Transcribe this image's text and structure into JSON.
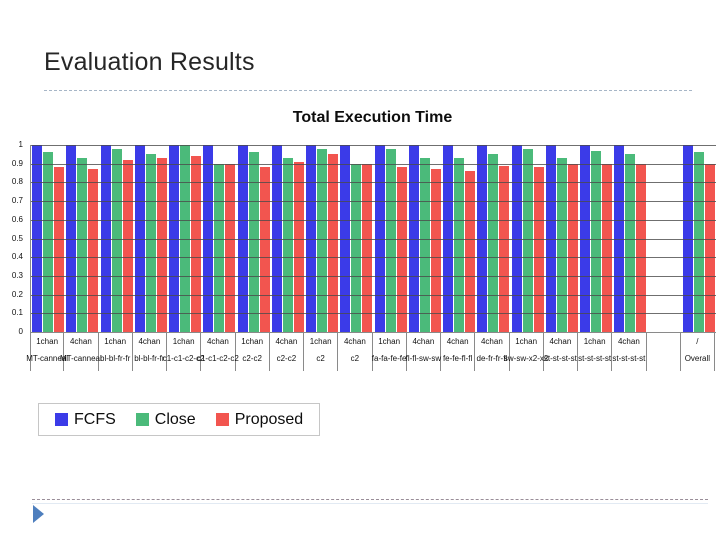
{
  "slide": {
    "title": "Evaluation Results"
  },
  "chart_data": {
    "type": "bar",
    "title": "Total Execution Time",
    "ylabel": "",
    "xlabel": "",
    "ylim": [
      0,
      1
    ],
    "grid": true,
    "legend_position": "bottom-left",
    "yticks": [
      "1",
      "0.9",
      "0.8",
      "0.7",
      "0.6",
      "0.5",
      "0.4",
      "0.3",
      "0.2",
      "0.1",
      "0"
    ],
    "legend": [
      {
        "name": "FCFS",
        "color": "#3b3be8"
      },
      {
        "name": "Close",
        "color": "#4bba7a"
      },
      {
        "name": "Proposed",
        "color": "#f2554f"
      }
    ],
    "series_order": [
      "FCFS",
      "Close",
      "Proposed"
    ],
    "groups": [
      {
        "chan": "1chan",
        "workload": "MT-canneal",
        "values": [
          1,
          0.96,
          0.88
        ]
      },
      {
        "chan": "4chan",
        "workload": "MT-canneal",
        "values": [
          1,
          0.93,
          0.87
        ]
      },
      {
        "chan": "1chan",
        "workload": "bl-bl-fr-fr",
        "values": [
          1,
          0.98,
          0.92
        ]
      },
      {
        "chan": "4chan",
        "workload": "bl-bl-fr-fr",
        "values": [
          1,
          0.95,
          0.93
        ]
      },
      {
        "chan": "1chan",
        "workload": "c1-c1-c2-c2",
        "values": [
          1,
          1.0,
          0.94
        ]
      },
      {
        "chan": "4chan",
        "workload": "c1-c1-c2-c2",
        "values": [
          1,
          0.9,
          0.9
        ]
      },
      {
        "chan": "1chan",
        "workload": "c2-c2",
        "values": [
          1,
          0.96,
          0.88
        ]
      },
      {
        "chan": "4chan",
        "workload": "c2-c2",
        "values": [
          1,
          0.93,
          0.91
        ]
      },
      {
        "chan": "1chan",
        "workload": "c2",
        "values": [
          1,
          0.98,
          0.95
        ]
      },
      {
        "chan": "4chan",
        "workload": "c2",
        "values": [
          1,
          0.9,
          0.9
        ]
      },
      {
        "chan": "1chan",
        "workload": "fa-fa-fe-fe",
        "values": [
          1,
          0.98,
          0.88
        ]
      },
      {
        "chan": "4chan",
        "workload": "fl-fl-sw-sw",
        "values": [
          1,
          0.93,
          0.87
        ]
      },
      {
        "chan": "4chan",
        "workload": "fe-fe-fl-fl",
        "values": [
          1,
          0.93,
          0.86
        ]
      },
      {
        "chan": "4chan",
        "workload": "de-fr-fr-fl",
        "values": [
          1,
          0.95,
          0.89
        ]
      },
      {
        "chan": "1chan",
        "workload": "sw-sw-x2-x2",
        "values": [
          1,
          0.98,
          0.88
        ]
      },
      {
        "chan": "4chan",
        "workload": "st-st-st-st",
        "values": [
          1,
          0.93,
          0.9
        ]
      },
      {
        "chan": "1chan",
        "workload": "st-st-st-st",
        "values": [
          1,
          0.97,
          0.9
        ]
      },
      {
        "chan": "4chan",
        "workload": "st-st-st-st",
        "values": [
          1,
          0.95,
          0.9
        ]
      },
      {
        "chan": "",
        "workload": "",
        "values": null
      },
      {
        "chan": "/",
        "workload": "Overall",
        "values": [
          1,
          0.96,
          0.9
        ]
      }
    ]
  }
}
